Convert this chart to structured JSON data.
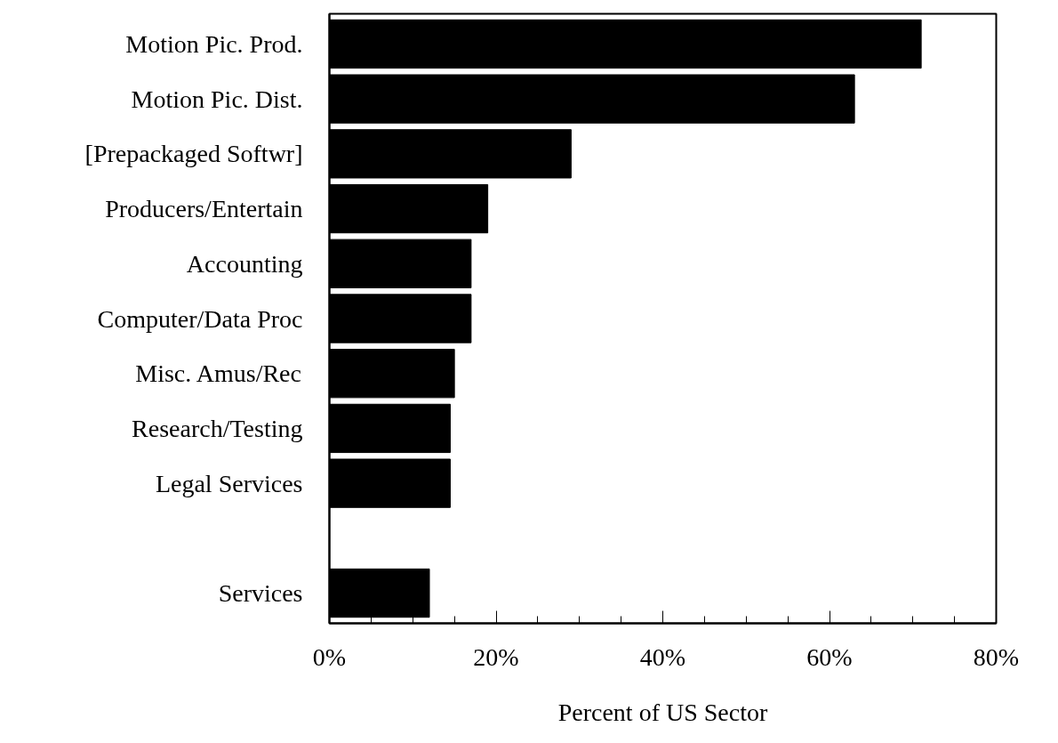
{
  "chart_data": {
    "type": "bar",
    "orientation": "horizontal",
    "xlabel": "Percent of US Sector",
    "categories": [
      "Motion Pic. Prod.",
      "Motion Pic. Dist.",
      "[Prepackaged Softwr]",
      "Producers/Entertain",
      "Accounting",
      "Computer/Data Proc",
      "Misc. Amus/Rec",
      "Research/Testing",
      "Legal Services",
      null,
      "Services"
    ],
    "values": [
      71,
      63,
      29,
      19,
      17,
      17,
      15,
      14.5,
      14.5,
      null,
      12
    ],
    "color": "#000000",
    "xlim": [
      0,
      80
    ],
    "xticks": [
      {
        "value": 0,
        "label": "0%"
      },
      {
        "value": 5,
        "label": null
      },
      {
        "value": 10,
        "label": null
      },
      {
        "value": 15,
        "label": null
      },
      {
        "value": 20,
        "label": "20%"
      },
      {
        "value": 25,
        "label": null
      },
      {
        "value": 30,
        "label": null
      },
      {
        "value": 35,
        "label": null
      },
      {
        "value": 40,
        "label": "40%"
      },
      {
        "value": 45,
        "label": null
      },
      {
        "value": 50,
        "label": null
      },
      {
        "value": 55,
        "label": null
      },
      {
        "value": 60,
        "label": "60%"
      },
      {
        "value": 65,
        "label": null
      },
      {
        "value": 70,
        "label": null
      },
      {
        "value": 75,
        "label": null
      },
      {
        "value": 80,
        "label": "80%"
      }
    ],
    "grid": false
  }
}
